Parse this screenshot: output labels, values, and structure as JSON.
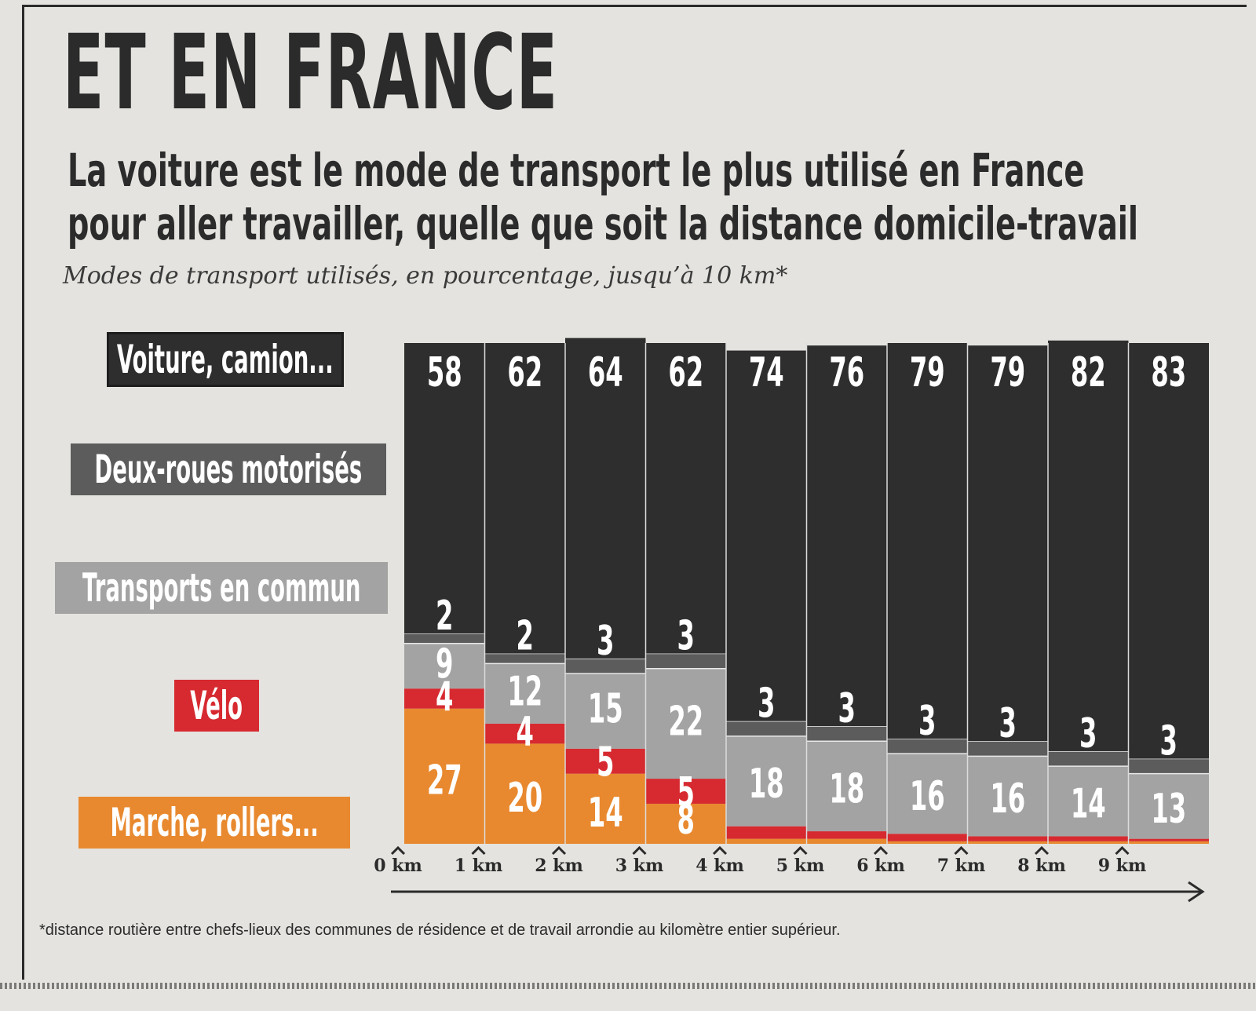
{
  "headline": "ET EN FRANCE",
  "subtitle_line1": "La voiture est le mode de transport le plus utilisé en France",
  "subtitle_line2": "pour aller travailler, quelle que soit la distance domicile-travail",
  "caption": "Modes de transport utilisés, en pourcentage, jusqu’à 10 km*",
  "footnote": "*distance routière entre chefs-lieux des communes de résidence et de travail arrondie au kilomètre entier supérieur.",
  "colors": {
    "car": "#2e2e2e",
    "moto": "#5c5c5c",
    "transit": "#a3a3a3",
    "bike": "#d62a30",
    "walk": "#e8892f",
    "text_dark": "#2b2b2b"
  },
  "chart_data": {
    "type": "bar",
    "stacked": true,
    "title": "Modes de transport utilisés, en pourcentage, jusqu’à 10 km*",
    "xlabel": "",
    "ylabel": "",
    "ylim": [
      0,
      100
    ],
    "categories": [
      "0 km",
      "1 km",
      "2 km",
      "3 km",
      "4 km",
      "5 km",
      "6 km",
      "7 km",
      "8 km",
      "9 km"
    ],
    "series": [
      {
        "name": "Marche, rollers...",
        "key": "walk",
        "values": [
          27,
          20,
          14,
          8,
          1,
          1,
          0.5,
          0.5,
          0.5,
          0.5
        ],
        "labels": [
          "27",
          "20",
          "14",
          "8",
          "",
          "",
          "",
          "",
          "",
          ""
        ]
      },
      {
        "name": "Vélo",
        "key": "bike",
        "values": [
          4,
          4,
          5,
          5,
          2.5,
          1.5,
          1.5,
          1,
          1,
          0.5
        ],
        "labels": [
          "4",
          "4",
          "5",
          "5",
          "",
          "",
          "",
          "",
          "",
          ""
        ]
      },
      {
        "name": "Transports en commun",
        "key": "transit",
        "values": [
          9,
          12,
          15,
          22,
          18,
          18,
          16,
          16,
          14,
          13
        ],
        "labels": [
          "9",
          "12",
          "15",
          "22",
          "18",
          "18",
          "16",
          "16",
          "14",
          "13"
        ]
      },
      {
        "name": "Deux-roues motorisés",
        "key": "moto",
        "values": [
          2,
          2,
          3,
          3,
          3,
          3,
          3,
          3,
          3,
          3
        ],
        "labels": [
          "2",
          "2",
          "3",
          "3",
          "3",
          "3",
          "3",
          "3",
          "3",
          "3"
        ]
      },
      {
        "name": "Voiture, camion...",
        "key": "car",
        "values": [
          58,
          62,
          64,
          62,
          74,
          76,
          79,
          79,
          82,
          83
        ],
        "labels": [
          "58",
          "62",
          "64",
          "62",
          "74",
          "76",
          "79",
          "79",
          "82",
          "83"
        ]
      }
    ],
    "legend": [
      "Voiture, camion...",
      "Deux-roues motorisés",
      "Transports en commun",
      "Vélo",
      "Marche, rollers..."
    ],
    "legend_placement": "left"
  }
}
